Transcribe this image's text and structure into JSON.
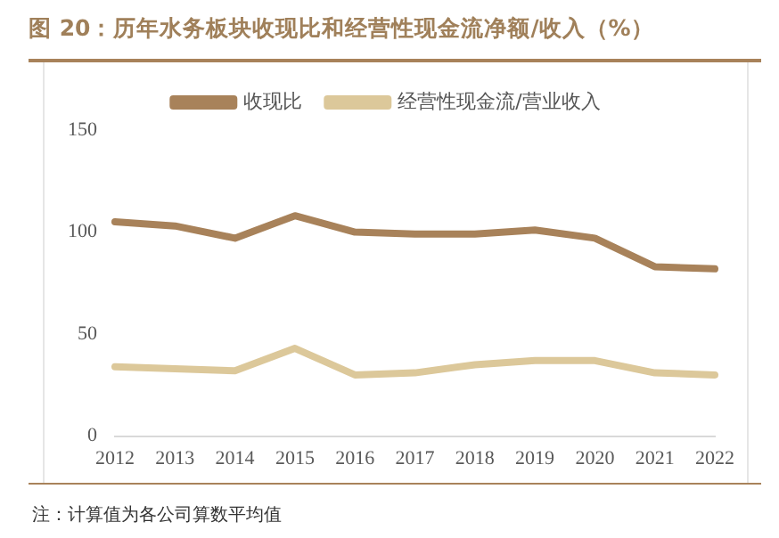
{
  "chart_data": {
    "type": "line",
    "title": "图 20：历年水务板块收现比和经营性现金流净额/收入（%）",
    "categories": [
      "2012",
      "2013",
      "2014",
      "2015",
      "2016",
      "2017",
      "2018",
      "2019",
      "2020",
      "2021",
      "2022"
    ],
    "series": [
      {
        "name": "收现比",
        "color": "#a8825a",
        "values": [
          105,
          103,
          97,
          108,
          100,
          99,
          99,
          101,
          97,
          83,
          82
        ]
      },
      {
        "name": "经营性现金流/营业收入",
        "color": "#dcc89a",
        "values": [
          34,
          33,
          32,
          43,
          30,
          31,
          35,
          37,
          37,
          31,
          30
        ]
      }
    ],
    "ylim": [
      0,
      150
    ],
    "yticks": [
      0,
      50,
      100,
      150
    ],
    "grid": false,
    "legend": "top",
    "marker": "none",
    "line_style": "solid",
    "annotations": [
      "注：计算值为各公司算数平均值"
    ]
  }
}
